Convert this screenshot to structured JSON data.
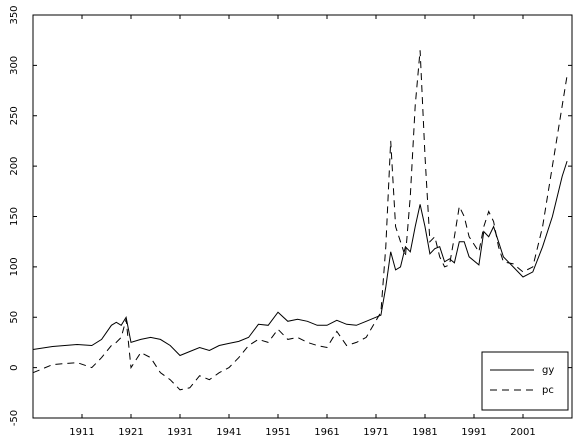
{
  "chart_data": {
    "type": "line",
    "x": [
      1901,
      1905,
      1910,
      1913,
      1915,
      1917,
      1918,
      1919,
      1920,
      1921,
      1923,
      1925,
      1927,
      1929,
      1931,
      1933,
      1935,
      1937,
      1939,
      1941,
      1943,
      1945,
      1947,
      1949,
      1951,
      1953,
      1955,
      1957,
      1959,
      1961,
      1963,
      1965,
      1967,
      1969,
      1972,
      1973,
      1974,
      1975,
      1976,
      1977,
      1978,
      1979,
      1980,
      1981,
      1982,
      1983,
      1984,
      1985,
      1986,
      1987,
      1988,
      1989,
      1990,
      1992,
      1993,
      1994,
      1995,
      1996,
      1997,
      1999,
      2001,
      2003,
      2005,
      2007,
      2009,
      2010
    ],
    "series": [
      {
        "name": "gy",
        "color": "#000000",
        "dash": false,
        "values": [
          18,
          21,
          23,
          22,
          28,
          42,
          45,
          42,
          50,
          25,
          28,
          30,
          28,
          22,
          12,
          16,
          20,
          17,
          22,
          24,
          26,
          30,
          43,
          42,
          55,
          46,
          48,
          46,
          42,
          42,
          47,
          43,
          42,
          46,
          52,
          80,
          115,
          97,
          100,
          120,
          115,
          140,
          162,
          140,
          113,
          118,
          120,
          105,
          108,
          104,
          125,
          125,
          110,
          102,
          135,
          130,
          140,
          125,
          110,
          100,
          90,
          95,
          120,
          150,
          190,
          205
        ]
      },
      {
        "name": "pc",
        "color": "#000000",
        "dash": true,
        "values": [
          -5,
          3,
          5,
          0,
          10,
          22,
          25,
          30,
          48,
          0,
          15,
          10,
          -5,
          -12,
          -22,
          -20,
          -8,
          -12,
          -5,
          0,
          10,
          22,
          28,
          25,
          38,
          28,
          30,
          25,
          22,
          20,
          36,
          22,
          25,
          30,
          55,
          120,
          225,
          140,
          125,
          110,
          170,
          260,
          315,
          210,
          125,
          130,
          110,
          100,
          102,
          130,
          160,
          150,
          130,
          115,
          140,
          155,
          145,
          120,
          105,
          103,
          95,
          100,
          140,
          200,
          260,
          290
        ]
      }
    ],
    "xlim": [
      1901,
      2011
    ],
    "xticks": [
      1911,
      1921,
      1931,
      1941,
      1951,
      1961,
      1971,
      1981,
      1991,
      2001
    ],
    "ylim": [
      -50,
      350
    ],
    "yticks": [
      -50,
      0,
      50,
      100,
      150,
      200,
      250,
      300,
      350
    ],
    "legend": "lower right"
  }
}
